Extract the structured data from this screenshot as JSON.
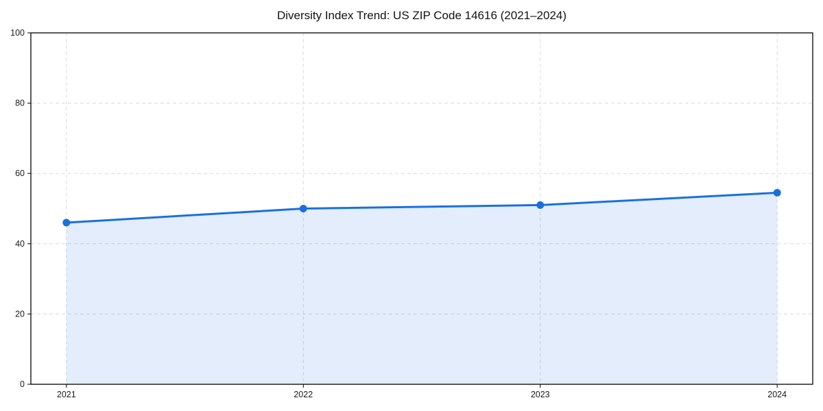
{
  "title": "Diversity Index Trend: US ZIP Code 14616 (2021–2024)",
  "chart_data": {
    "type": "area",
    "title": "Diversity Index Trend: US ZIP Code 14616 (2021–2024)",
    "x": [
      2021,
      2022,
      2023,
      2024
    ],
    "categories": [
      "2021",
      "2022",
      "2023",
      "2024"
    ],
    "values": [
      46,
      50,
      51,
      54.5
    ],
    "xlabel": "",
    "ylabel": "",
    "ylim": [
      0,
      100
    ],
    "yticks": [
      0,
      20,
      40,
      60,
      80,
      100
    ],
    "grid": true,
    "grid_style": "dashed",
    "legend": "none",
    "line_color": "#1a6fe0",
    "marker_color": "#1a6fe0",
    "fill_opacity": 0.12,
    "grid_color": "#d9d9d9",
    "axis_color": "#000000",
    "tick_label_color": "#1a1a1a",
    "background": "#ffffff"
  }
}
